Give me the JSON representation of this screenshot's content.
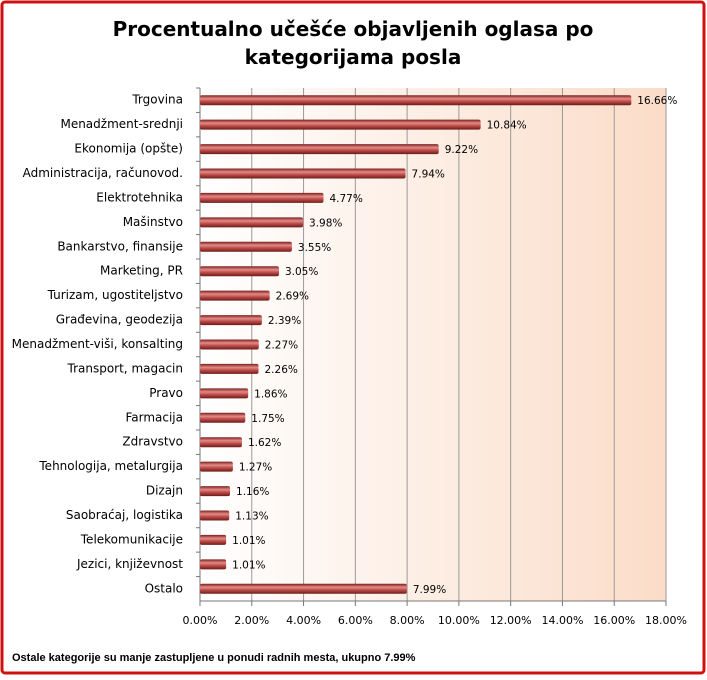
{
  "chart_data": {
    "type": "bar",
    "orientation": "horizontal",
    "title": "Procentualno učešće objavljenih oglasa po kategorijama posla",
    "note": "Ostale kategorije su manje zastupljene u ponudi radnih mesta, ukupno 7.99%",
    "categories": [
      "Trgovina",
      "Menadžment-srednji",
      "Ekonomija (opšte)",
      "Administracija, računovod.",
      "Elektrotehnika",
      "Mašinstvo",
      "Bankarstvo, finansije",
      "Marketing, PR",
      "Turizam, ugostiteljstvo",
      "Građevina, geodezija",
      "Menadžment-viši, konsalting",
      "Transport, magacin",
      "Pravo",
      "Farmacija",
      "Zdravstvo",
      "Tehnologija, metalurgija",
      "Dizajn",
      "Saobraćaj, logistika",
      "Telekomunikacije",
      "Jezici, književnost",
      "Ostalo"
    ],
    "values": [
      16.66,
      10.84,
      9.22,
      7.94,
      4.77,
      3.98,
      3.55,
      3.05,
      2.69,
      2.39,
      2.27,
      2.26,
      1.86,
      1.75,
      1.62,
      1.27,
      1.16,
      1.13,
      1.01,
      1.01,
      7.99
    ],
    "value_labels": [
      "16.66%",
      "10.84%",
      "9.22%",
      "7.94%",
      "4.77%",
      "3.98%",
      "3.55%",
      "3.05%",
      "2.69%",
      "2.39%",
      "2.27%",
      "2.26%",
      "1.86%",
      "1.75%",
      "1.62%",
      "1.27%",
      "1.16%",
      "1.13%",
      "1.01%",
      "1.01%",
      "7.99%"
    ],
    "color": "#c0504d",
    "xlim": [
      0,
      18
    ],
    "xticks": [
      {
        "value": 0,
        "label": "0.00%"
      },
      {
        "value": 2,
        "label": "2.00%"
      },
      {
        "value": 4,
        "label": "4.00%"
      },
      {
        "value": 6,
        "label": "6.00%"
      },
      {
        "value": 8,
        "label": "8.00%"
      },
      {
        "value": 10,
        "label": "10.00%"
      },
      {
        "value": 12,
        "label": "12.00%"
      },
      {
        "value": 14,
        "label": "14.00%"
      },
      {
        "value": 16,
        "label": "16.00%"
      },
      {
        "value": 18,
        "label": "18.00%"
      }
    ],
    "grid": true
  }
}
